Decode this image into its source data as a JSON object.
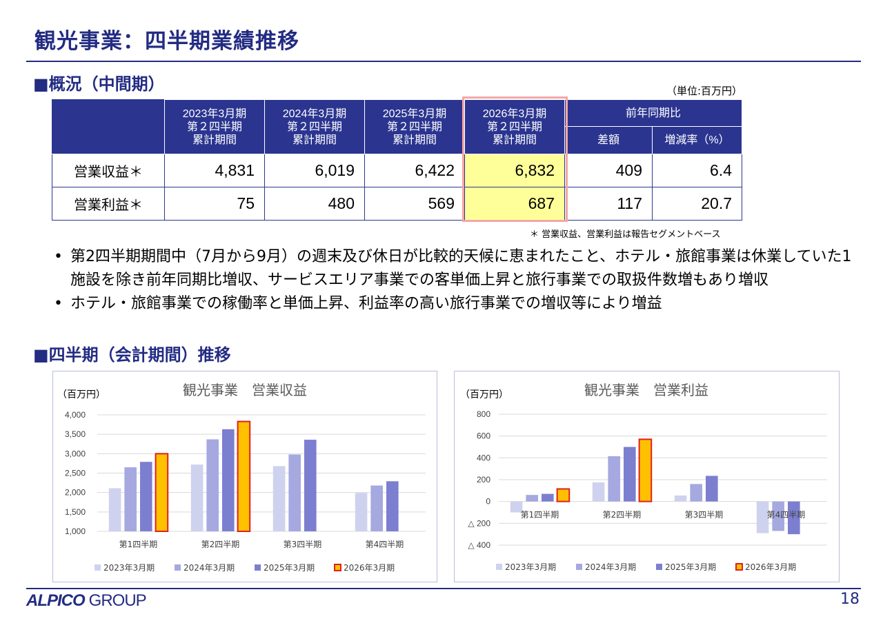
{
  "header": {
    "title": "観光事業：四半期業績推移"
  },
  "overview": {
    "heading": "■概況（中間期）",
    "unit": "（単位:百万円）",
    "columns": [
      {
        "line1": "2023年3月期",
        "line2": "第２四半期",
        "line3": "累計期間"
      },
      {
        "line1": "2024年3月期",
        "line2": "第２四半期",
        "line3": "累計期間"
      },
      {
        "line1": "2025年3月期",
        "line2": "第２四半期",
        "line3": "累計期間"
      },
      {
        "line1": "2026年3月期",
        "line2": "第２四半期",
        "line3": "累計期間"
      }
    ],
    "yoy_header": "前年同期比",
    "diff_header": "差額",
    "rate_header": "増減率（%）",
    "rows": [
      {
        "label": "営業収益＊",
        "values": [
          "4,831",
          "6,019",
          "6,422",
          "6,832",
          "409",
          "6.4"
        ]
      },
      {
        "label": "営業利益＊",
        "values": [
          "75",
          "480",
          "569",
          "687",
          "117",
          "20.7"
        ]
      }
    ],
    "footnote": "＊ 営業収益、営業利益は報告セグメントベース",
    "highlight_color": "#ffff99"
  },
  "bullets": [
    "第2四半期期間中（7月から9月）の週末及び休日が比較的天候に恵まれたこと、ホテル・旅館事業は休業していた1施設を除き前年同期比増収、サービスエリア事業での客単価上昇と旅行事業での取扱件数増もあり増収",
    "ホテル・旅館事業での稼働率と単価上昇、利益率の高い旅行事業での増収等により増益"
  ],
  "quarterly": {
    "heading": "■四半期（会計期間）推移"
  },
  "chart_data": [
    {
      "type": "bar",
      "title": "観光事業　営業収益",
      "ylabel": "（百万円）",
      "categories": [
        "第1四半期",
        "第2四半期",
        "第3四半期",
        "第4四半期"
      ],
      "ylim": [
        1000,
        4000
      ],
      "yticks": [
        1000,
        1500,
        2000,
        2500,
        3000,
        3500,
        4000
      ],
      "ytick_labels": [
        "1,000",
        "1,500",
        "2,000",
        "2,500",
        "3,000",
        "3,500",
        "4,000"
      ],
      "series": [
        {
          "name": "2023年3月期",
          "color": "#cfd2ee",
          "values": [
            2110,
            2720,
            2680,
            1990
          ]
        },
        {
          "name": "2024年3月期",
          "color": "#a5a9e0",
          "values": [
            2650,
            3370,
            2980,
            2180
          ]
        },
        {
          "name": "2025年3月期",
          "color": "#7c7fcf",
          "values": [
            2790,
            3630,
            3360,
            2290
          ]
        },
        {
          "name": "2026年3月期",
          "color": "#ffc000",
          "border": "#e01f1f",
          "values": [
            3000,
            3830,
            null,
            null
          ]
        }
      ],
      "legend": "bottom"
    },
    {
      "type": "bar",
      "title": "観光事業　営業利益",
      "ylabel": "（百万円）",
      "categories": [
        "第1四半期",
        "第2四半期",
        "第3四半期",
        "第4四半期"
      ],
      "ylim": [
        -400,
        800
      ],
      "yticks": [
        -400,
        -200,
        0,
        200,
        400,
        600,
        800
      ],
      "ytick_labels": [
        "△ 400",
        "△ 200",
        "0",
        "200",
        "400",
        "600",
        "800"
      ],
      "series": [
        {
          "name": "2023年3月期",
          "color": "#cfd2ee",
          "values": [
            -100,
            175,
            55,
            -290
          ]
        },
        {
          "name": "2024年3月期",
          "color": "#a5a9e0",
          "values": [
            60,
            415,
            160,
            -270
          ]
        },
        {
          "name": "2025年3月期",
          "color": "#7c7fcf",
          "values": [
            70,
            500,
            235,
            -300
          ]
        },
        {
          "name": "2026年3月期",
          "color": "#ffc000",
          "border": "#e01f1f",
          "values": [
            115,
            570,
            null,
            null
          ]
        }
      ],
      "legend": "bottom"
    }
  ],
  "footer": {
    "brand": "ALPICO",
    "group": "GROUP",
    "page": "18"
  }
}
